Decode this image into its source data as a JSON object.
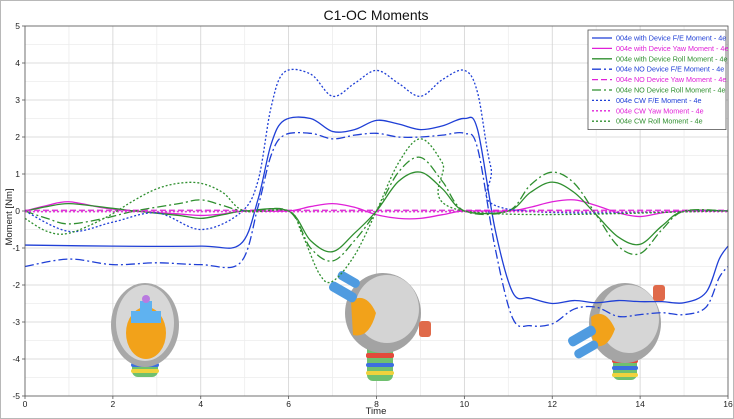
{
  "chart_data": {
    "type": "line",
    "title": "C1-OC Moments",
    "xlabel": "Time",
    "ylabel": "Moment [Nm]",
    "xlim": [
      0,
      16
    ],
    "ylim": [
      -5,
      5
    ],
    "xticks": [
      "0",
      "2",
      "4",
      "6",
      "8",
      "10",
      "12",
      "14",
      "16"
    ],
    "yticks": [
      "-5",
      "-4",
      "-3",
      "-2",
      "-1",
      "0",
      "1",
      "2",
      "3",
      "4",
      "5"
    ],
    "grid": true,
    "legend": "top-right",
    "series": [
      {
        "name": "004e with Device F/E Moment - 4e",
        "color": "#1f3fd6",
        "dash": "solid",
        "x": [
          0,
          2,
          4,
          4.9,
          5.3,
          5.6,
          5.9,
          6.5,
          7,
          7.5,
          8,
          8.5,
          9,
          9.5,
          10,
          10.3,
          10.7,
          11.1,
          11.5,
          12,
          12.5,
          13,
          13.5,
          14,
          14.5,
          15,
          15.5,
          15.8,
          16
        ],
        "y": [
          -0.92,
          -0.95,
          -0.95,
          -0.9,
          0.3,
          1.8,
          2.45,
          2.5,
          2.15,
          2.2,
          2.45,
          2.35,
          2.2,
          2.3,
          2.5,
          2.2,
          -0.5,
          -2.2,
          -2.35,
          -2.5,
          -2.42,
          -2.48,
          -2.42,
          -2.45,
          -2.45,
          -2.48,
          -2.2,
          -1.3,
          -0.95
        ]
      },
      {
        "name": "004e with Device Yaw Moment - 4e",
        "color": "#e020d8",
        "dash": "solid",
        "x": [
          0,
          0.5,
          1,
          1.8,
          2.5,
          3.5,
          4,
          4.5,
          5,
          6,
          6.5,
          7,
          7.5,
          8,
          8.5,
          9,
          9.5,
          10,
          11,
          11.5,
          12,
          12.5,
          13,
          13.5,
          14,
          14.5,
          15,
          16
        ],
        "y": [
          0,
          0.15,
          0.25,
          0.08,
          0,
          -0.08,
          -0.12,
          -0.08,
          0,
          0,
          0.12,
          0.2,
          0.1,
          -0.1,
          -0.2,
          -0.2,
          -0.1,
          0,
          0,
          0.1,
          0.25,
          0.3,
          0.15,
          -0.05,
          -0.15,
          -0.05,
          0,
          0
        ]
      },
      {
        "name": "004e with Device Roll Moment - 4e",
        "color": "#2f8f2f",
        "dash": "solid",
        "x": [
          0,
          0.5,
          1,
          1.8,
          2.5,
          3.5,
          4,
          4.5,
          5,
          6,
          6.5,
          7,
          7.5,
          8,
          8.5,
          9,
          9.5,
          10,
          11,
          11.5,
          12,
          12.5,
          13,
          13.5,
          14,
          14.5,
          15,
          16
        ],
        "y": [
          0,
          0.12,
          0.2,
          0.1,
          0,
          -0.12,
          -0.2,
          -0.1,
          0,
          0,
          -0.8,
          -1.1,
          -0.6,
          0,
          0.8,
          1.05,
          0.6,
          0,
          0,
          0.5,
          0.78,
          0.5,
          -0.1,
          -0.7,
          -0.9,
          -0.4,
          0,
          0
        ]
      },
      {
        "name": "004e NO Device F/E Moment - 4e",
        "color": "#1f3fd6",
        "dash": "dashdot",
        "x": [
          0,
          1,
          2,
          3,
          4,
          4.9,
          5.3,
          5.6,
          5.9,
          6.5,
          7,
          7.5,
          8,
          8.5,
          9,
          9.5,
          10,
          10.3,
          10.7,
          11.1,
          11.5,
          12,
          12.5,
          13,
          13.5,
          14,
          14.5,
          15,
          15.5,
          15.8,
          16
        ],
        "y": [
          -1.5,
          -1.3,
          -1.45,
          -1.4,
          -1.45,
          -1.4,
          0.1,
          1.5,
          2.05,
          2.1,
          1.95,
          2.05,
          2.1,
          2.0,
          2.0,
          2.05,
          2.1,
          1.7,
          -1.0,
          -2.9,
          -3.1,
          -3.05,
          -2.65,
          -2.6,
          -2.85,
          -2.8,
          -2.75,
          -2.8,
          -2.6,
          -1.8,
          -1.5
        ]
      },
      {
        "name": "004e NO Device Yaw Moment - 4e",
        "color": "#e020d8",
        "dash": "dash",
        "x": [
          0,
          16
        ],
        "y": [
          0.02,
          0.02
        ]
      },
      {
        "name": "004e NO Device Roll Moment - 4e",
        "color": "#2f8f2f",
        "dash": "dashdot",
        "x": [
          0,
          0.5,
          1,
          1.8,
          2.5,
          3.5,
          4,
          4.5,
          5,
          6,
          6.5,
          7,
          7.5,
          8,
          8.5,
          9,
          9.5,
          10,
          11,
          11.5,
          12,
          12.5,
          13,
          13.5,
          14,
          14.5,
          15,
          16
        ],
        "y": [
          0,
          -0.2,
          -0.35,
          -0.2,
          0,
          0.2,
          0.3,
          0.15,
          0,
          0,
          -1.0,
          -1.35,
          -0.8,
          0,
          1.05,
          1.45,
          0.8,
          0,
          0,
          0.7,
          1.05,
          0.75,
          -0.1,
          -0.95,
          -1.15,
          -0.5,
          0,
          0
        ]
      },
      {
        "name": "004e CW F/E Moment - 4e",
        "color": "#1f3fd6",
        "dash": "dot",
        "x": [
          0,
          1,
          2,
          3,
          4,
          4.9,
          5.3,
          5.6,
          5.9,
          6.5,
          7,
          7.5,
          8,
          8.5,
          9,
          9.5,
          10,
          10.3,
          10.6,
          11,
          16
        ],
        "y": [
          0,
          -0.55,
          -0.3,
          -0.05,
          -0.5,
          -0.05,
          0.8,
          2.8,
          3.75,
          3.7,
          3.1,
          3.45,
          3.8,
          3.45,
          3.1,
          3.55,
          3.8,
          3.2,
          1.2,
          0.05,
          0
        ]
      },
      {
        "name": "004e CW Yaw Moment - 4e",
        "color": "#e020d8",
        "dash": "dot",
        "x": [
          0,
          16
        ],
        "y": [
          -0.02,
          -0.02
        ]
      },
      {
        "name": "004e CW Roll Moment - 4e",
        "color": "#2f8f2f",
        "dash": "dot",
        "x": [
          0,
          0.5,
          1,
          1.8,
          2.5,
          3,
          3.5,
          4,
          4.5,
          5,
          6,
          6.3,
          6.7,
          7,
          7.5,
          8,
          8.5,
          9,
          9.5,
          10,
          16
        ],
        "y": [
          -0.2,
          -0.55,
          -0.6,
          -0.2,
          0.3,
          0.6,
          0.75,
          0.75,
          0.5,
          0,
          0,
          -0.6,
          -1.7,
          -1.9,
          -1.2,
          0,
          1.3,
          1.95,
          1.3,
          0,
          0
        ]
      }
    ]
  }
}
